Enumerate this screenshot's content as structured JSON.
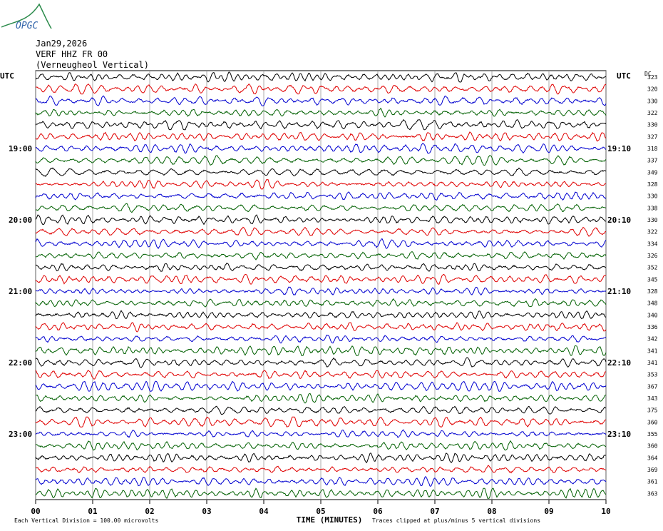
{
  "logo": "OPGC",
  "header": {
    "date": "Jan29,2026",
    "station": "VERF HHZ FR 00",
    "name": "(Verneugheol Vertical)"
  },
  "left_title": "UTC",
  "right_title": "UTC",
  "dc_title": "DC",
  "trace_colors": [
    "#000000",
    "#e00000",
    "#0000d0",
    "#006000"
  ],
  "rows": [
    {
      "dc": "323"
    },
    {
      "dc": "320"
    },
    {
      "dc": "330"
    },
    {
      "dc": "322"
    },
    {
      "dc": "330"
    },
    {
      "dc": "327"
    },
    {
      "left": "19:00",
      "right": "19:10",
      "dc": "318"
    },
    {
      "dc": "337"
    },
    {
      "dc": "349"
    },
    {
      "dc": "328"
    },
    {
      "dc": "330"
    },
    {
      "dc": "338"
    },
    {
      "left": "20:00",
      "right": "20:10",
      "dc": "330"
    },
    {
      "dc": "322"
    },
    {
      "dc": "334"
    },
    {
      "dc": "326"
    },
    {
      "dc": "352"
    },
    {
      "dc": "345"
    },
    {
      "left": "21:00",
      "right": "21:10",
      "dc": "328"
    },
    {
      "dc": "348"
    },
    {
      "dc": "340"
    },
    {
      "dc": "336"
    },
    {
      "dc": "342"
    },
    {
      "dc": "341"
    },
    {
      "left": "22:00",
      "right": "22:10",
      "dc": "341"
    },
    {
      "dc": "353"
    },
    {
      "dc": "367"
    },
    {
      "dc": "343"
    },
    {
      "dc": "375"
    },
    {
      "dc": "360"
    },
    {
      "left": "23:00",
      "right": "23:10",
      "dc": "355"
    },
    {
      "dc": "360"
    },
    {
      "dc": "364"
    },
    {
      "dc": "369"
    },
    {
      "dc": "361"
    },
    {
      "dc": "363"
    }
  ],
  "x_ticks": [
    "00",
    "01",
    "02",
    "03",
    "04",
    "05",
    "06",
    "07",
    "08",
    "09",
    "10"
  ],
  "footer": {
    "scale": "Each Vertical Division =  100.00 microvolts",
    "axis_title": "TIME (MINUTES)",
    "note": "Traces clipped at plus/minus 5 vertical divisions"
  }
}
